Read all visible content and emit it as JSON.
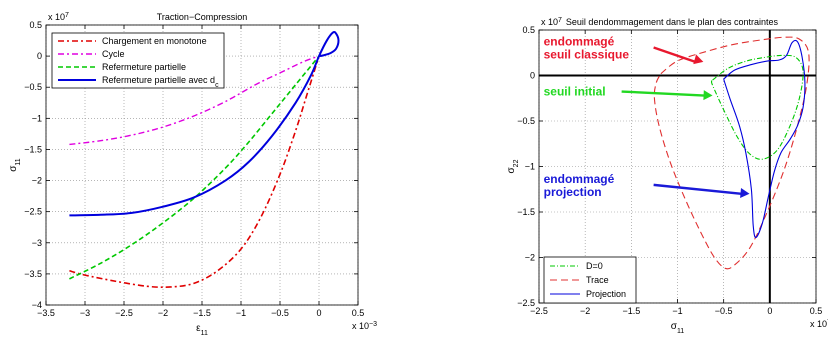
{
  "chart_data": [
    {
      "type": "line",
      "title": "Traction−Compression",
      "xlabel": "ε",
      "xlabel_sub": "11",
      "ylabel": "σ",
      "ylabel_sub": "11",
      "x_exponent": "x 10",
      "x_exponent_power": "−3",
      "y_exponent": "x 10",
      "y_exponent_power": "7",
      "xlim": [
        -3.5,
        0.5
      ],
      "ylim": [
        -4,
        0.5
      ],
      "x_ticks": [
        -3.5,
        -3,
        -2.5,
        -2,
        -1.5,
        -1,
        -0.5,
        0,
        0.5
      ],
      "x_tick_labels": [
        "−3.5",
        "−3",
        "−2.5",
        "−2",
        "−1.5",
        "−1",
        "−0.5",
        "0",
        "0.5"
      ],
      "y_ticks": [
        -4,
        -3.5,
        -3,
        -2.5,
        -2,
        -1.5,
        -1,
        -0.5,
        0,
        0.5
      ],
      "y_tick_labels": [
        "−4",
        "−3.5",
        "−3",
        "−2.5",
        "−2",
        "−1.5",
        "−1",
        "−0.5",
        "0",
        "0.5"
      ],
      "grid": true,
      "legend_position": "top-left",
      "series": [
        {
          "name": "Chargement en monotone",
          "color": "#e00000",
          "dash": "6,3,2,3",
          "width": 1.6,
          "x": [
            -3.2,
            -3.0,
            -2.6,
            -2.2,
            -1.9,
            -1.6,
            -1.3,
            -1.0,
            -0.75,
            -0.5,
            -0.3,
            -0.15,
            0.0
          ],
          "y": [
            -3.45,
            -3.52,
            -3.62,
            -3.7,
            -3.71,
            -3.65,
            -3.45,
            -3.1,
            -2.6,
            -1.9,
            -1.2,
            -0.6,
            0.0
          ]
        },
        {
          "name": "Cycle",
          "color": "#e000e0",
          "dash": "6,3,2,3",
          "width": 1.4,
          "x": [
            -3.2,
            -2.8,
            -2.4,
            -2.0,
            -1.6,
            -1.2,
            -0.8,
            -0.5,
            -0.2,
            0.0
          ],
          "y": [
            -1.42,
            -1.36,
            -1.27,
            -1.14,
            -0.96,
            -0.73,
            -0.45,
            -0.27,
            -0.09,
            0.0
          ]
        },
        {
          "name": "Refermeture partielle",
          "color": "#00c800",
          "dash": "5,3",
          "width": 1.6,
          "x": [
            -3.2,
            -2.8,
            -2.4,
            -2.0,
            -1.6,
            -1.2,
            -0.9,
            -0.6,
            -0.3,
            0.0
          ],
          "y": [
            -3.58,
            -3.33,
            -3.03,
            -2.68,
            -2.28,
            -1.8,
            -1.38,
            -0.92,
            -0.46,
            0.0
          ]
        },
        {
          "name": "Refermeture partielle avec d",
          "name_sub": "c",
          "color": "#0000dd",
          "dash": "",
          "width": 2.0,
          "x": [
            -3.2,
            -2.8,
            -2.4,
            -2.0,
            -1.6,
            -1.2,
            -0.9,
            -0.6,
            -0.3,
            -0.1,
            0.0,
            0.1,
            0.18,
            0.22,
            0.25,
            0.22,
            0.15,
            0.05,
            0.0
          ],
          "y": [
            -2.56,
            -2.55,
            -2.52,
            -2.42,
            -2.27,
            -2.0,
            -1.7,
            -1.28,
            -0.75,
            -0.3,
            0.0,
            0.25,
            0.38,
            0.36,
            0.25,
            0.12,
            0.05,
            0.01,
            0.0
          ]
        }
      ]
    },
    {
      "type": "line",
      "title": "Seuil dendommagement dans le plan des contraintes",
      "xlabel": "σ",
      "xlabel_sub": "11",
      "ylabel": "σ",
      "ylabel_sub": "22",
      "x_exponent": "x 10",
      "x_exponent_power": "7",
      "y_exponent": "x 10",
      "y_exponent_power": "7",
      "xlim": [
        -2.5,
        0.5
      ],
      "ylim": [
        -2.5,
        0.5
      ],
      "x_ticks": [
        -2.5,
        -2,
        -1.5,
        -1,
        -0.5,
        0,
        0.5
      ],
      "x_tick_labels": [
        "−2.5",
        "−2",
        "−1.5",
        "−1",
        "−0.5",
        "0",
        "0.5"
      ],
      "y_ticks": [
        -2.5,
        -2,
        -1.5,
        -1,
        -0.5,
        0,
        0.5
      ],
      "y_tick_labels": [
        "−2.5",
        "−2",
        "−1.5",
        "−1",
        "−0.5",
        "0",
        "0.5"
      ],
      "grid": true,
      "legend_position": "bottom-left",
      "series": [
        {
          "name": "D=0",
          "color": "#00c800",
          "dash": "5,2,1,2",
          "width": 1.1,
          "x": [
            -0.62,
            -0.45,
            -0.25,
            -0.05,
            0.12,
            0.28,
            0.36,
            0.32,
            0.22,
            0.08,
            -0.08,
            -0.22,
            -0.35,
            -0.48,
            -0.58,
            -0.63,
            -0.62
          ],
          "y": [
            -0.05,
            0.08,
            0.16,
            0.2,
            0.22,
            0.2,
            0.05,
            -0.25,
            -0.55,
            -0.82,
            -0.92,
            -0.86,
            -0.68,
            -0.42,
            -0.2,
            -0.08,
            -0.05
          ]
        },
        {
          "name": "Trace",
          "color": "#e03030",
          "dash": "7,4",
          "width": 1.1,
          "x": [
            -1.18,
            -1.0,
            -0.7,
            -0.4,
            -0.1,
            0.15,
            0.32,
            0.42,
            0.4,
            0.3,
            0.15,
            -0.05,
            -0.22,
            -0.38,
            -0.48,
            -0.6,
            -0.75,
            -0.92,
            -1.08,
            -1.2,
            -1.25,
            -1.23,
            -1.18
          ],
          "y": [
            0.02,
            0.16,
            0.26,
            0.34,
            0.39,
            0.42,
            0.4,
            0.25,
            -0.1,
            -0.55,
            -1.05,
            -1.55,
            -1.9,
            -2.08,
            -2.12,
            -2.0,
            -1.72,
            -1.35,
            -0.95,
            -0.55,
            -0.25,
            -0.08,
            0.02
          ]
        },
        {
          "name": "Projection",
          "color": "#0000dd",
          "dash": "",
          "width": 1.1,
          "x": [
            -0.5,
            -0.38,
            -0.2,
            -0.02,
            0.1,
            0.18,
            0.24,
            0.3,
            0.35,
            0.38,
            0.36,
            0.3,
            0.22,
            0.12,
            0.05,
            -0.02,
            -0.08,
            -0.15,
            -0.18,
            -0.2,
            -0.26,
            -0.33,
            -0.43,
            -0.5
          ],
          "y": [
            -0.04,
            0.06,
            0.12,
            0.16,
            0.17,
            0.22,
            0.36,
            0.37,
            0.2,
            -0.08,
            -0.35,
            -0.55,
            -0.7,
            -0.85,
            -1.05,
            -1.35,
            -1.62,
            -1.78,
            -1.65,
            -1.25,
            -0.85,
            -0.55,
            -0.26,
            -0.04
          ]
        }
      ],
      "annotations": [
        {
          "lines": [
            "endommagé",
            "seuil classique"
          ],
          "color": "#e8182e",
          "x": -2.45,
          "y": 0.33,
          "arrow_to": [
            -0.72,
            0.15
          ]
        },
        {
          "lines": [
            "seuil initial"
          ],
          "color": "#22d822",
          "x": -2.45,
          "y": -0.22,
          "arrow_to": [
            -0.62,
            -0.22
          ]
        },
        {
          "lines": [
            "endommagé",
            "projection"
          ],
          "color": "#1a1ad8",
          "x": -2.45,
          "y": -1.18,
          "arrow_to": [
            -0.22,
            -1.3
          ]
        }
      ]
    }
  ]
}
